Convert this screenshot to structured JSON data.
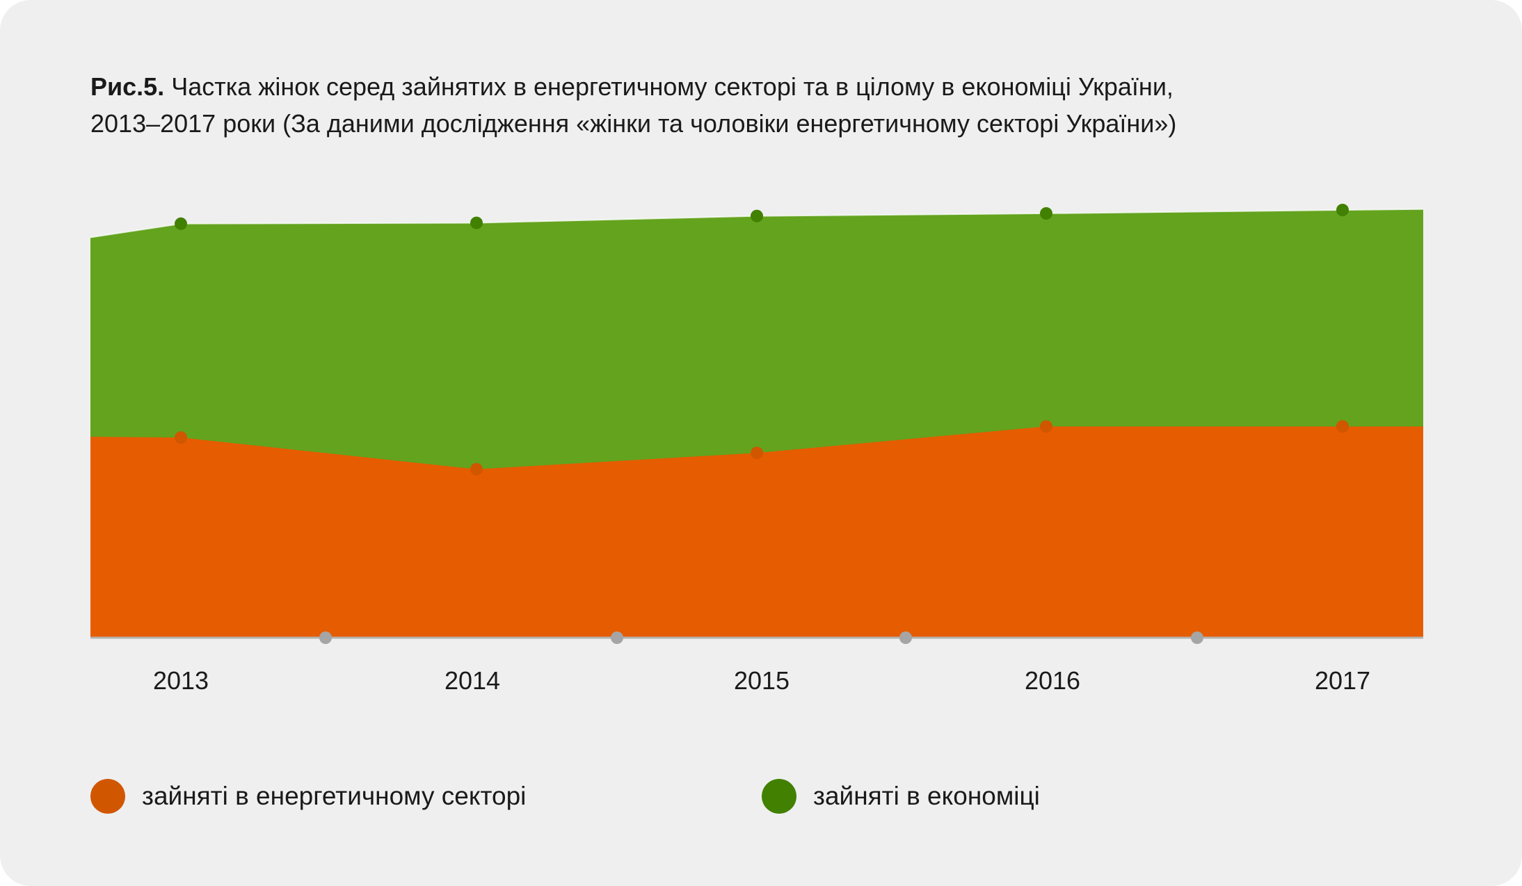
{
  "title": {
    "prefix": "Рис.5.",
    "line1": " Частка жінок серед зайнятих в енергетичному секторі та в цілому в економіці України,",
    "line2": "2013–2017 роки (За даними дослідження «жінки та чоловіки  енергетичному секторі України»)"
  },
  "colors": {
    "background": "#efefef",
    "energy_area": "#e65c00",
    "energy_marker": "#d15600",
    "economy_area": "#63a31e",
    "economy_marker": "#418000",
    "axis": "#b4b4b4",
    "axis_marker": "#a5a5a5"
  },
  "x_axis": {
    "labels": [
      "2013",
      "2014",
      "2015",
      "2016",
      "2017"
    ]
  },
  "legend": {
    "items": [
      {
        "label": "зайняті в енергетичному секторі",
        "color": "#d15600"
      },
      {
        "label": "зайняті в економіці",
        "color": "#418000"
      }
    ]
  },
  "chart_data": {
    "type": "area",
    "title": "Рис.5. Частка жінок серед зайнятих в енергетичному секторі та в цілому в економіці України, 2013–2017 роки (За даними дослідження «жінки та чоловіки  енергетичному секторі України»)",
    "xlabel": "",
    "ylabel": "",
    "categories": [
      "2013",
      "2014",
      "2015",
      "2016",
      "2017"
    ],
    "series": [
      {
        "name": "зайняті в енергетичному секторі",
        "values": [
          23.4,
          19.7,
          21.6,
          24.7,
          24.7
        ]
      },
      {
        "name": "зайняті в економіці",
        "values": [
          48.4,
          48.5,
          49.3,
          49.6,
          50.0
        ]
      }
    ],
    "ylim": [
      0,
      50
    ],
    "y_axis_visible": false,
    "grid": false,
    "legend_position": "bottom",
    "stacked": false
  }
}
